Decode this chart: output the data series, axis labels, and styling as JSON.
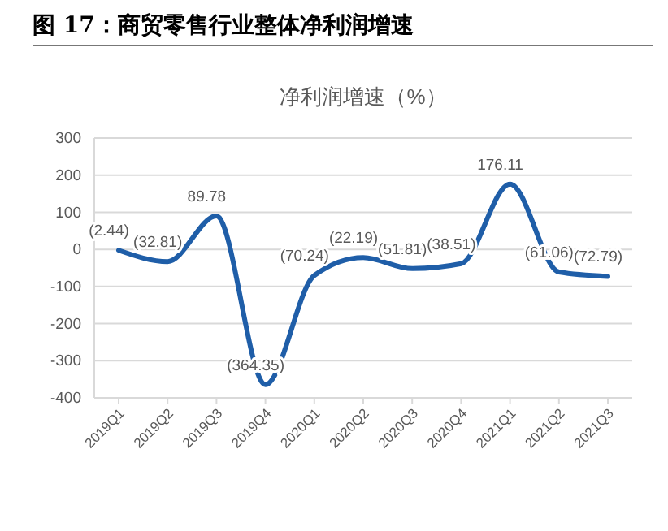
{
  "chart_data": {
    "type": "line",
    "title": "图 17：商贸零售行业整体净利润增速",
    "subtitle": "净利润增速（%）",
    "categories": [
      "2019Q1",
      "2019Q2",
      "2019Q3",
      "2019Q4",
      "2020Q1",
      "2020Q2",
      "2020Q3",
      "2020Q4",
      "2021Q1",
      "2021Q2",
      "2021Q3"
    ],
    "series": [
      {
        "color": "#1f5ea8",
        "values": [
          -2.44,
          -32.81,
          89.78,
          -364.35,
          -70.24,
          -22.19,
          -51.81,
          -38.51,
          176.11,
          -61.06,
          -72.79
        ],
        "value_labels": [
          "(2.44)",
          "(32.81)",
          "89.78",
          "(364.35)",
          "(70.24)",
          "(22.19)",
          "(51.81)",
          "(38.51)",
          "176.11",
          "(61.06)",
          "(72.79)"
        ]
      }
    ],
    "ylim": [
      -400,
      300
    ],
    "yticks": [
      -400,
      -300,
      -200,
      -100,
      0,
      100,
      200,
      300
    ],
    "grid": "y",
    "marker": "none",
    "line_style": "solid"
  }
}
